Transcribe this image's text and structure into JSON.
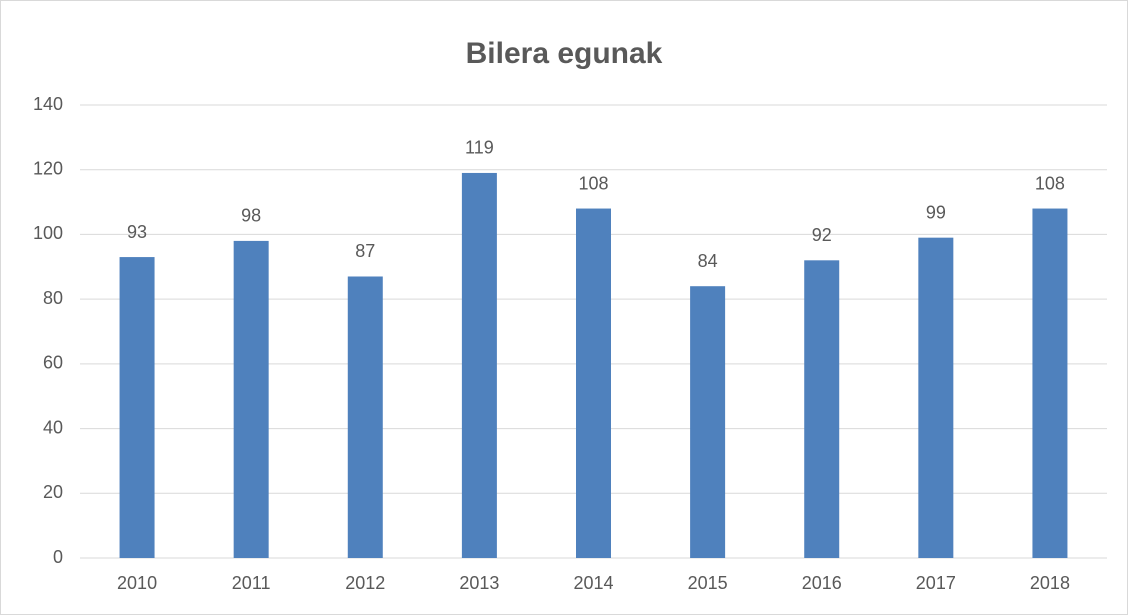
{
  "chart_data": {
    "type": "bar",
    "title": "Bilera egunak",
    "categories": [
      "2010",
      "2011",
      "2012",
      "2013",
      "2014",
      "2015",
      "2016",
      "2017",
      "2018"
    ],
    "values": [
      93,
      98,
      87,
      119,
      108,
      84,
      92,
      99,
      108
    ],
    "color": "#4f81bd",
    "ylim": [
      0,
      140
    ],
    "yticks": [
      0,
      20,
      40,
      60,
      80,
      100,
      120,
      140
    ],
    "grid": true,
    "data_labels": true
  }
}
